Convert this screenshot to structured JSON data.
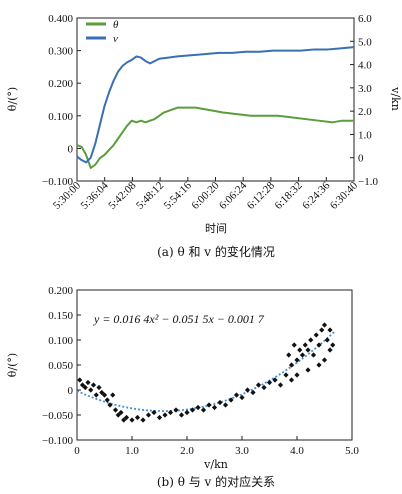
{
  "chart_data": [
    {
      "type": "line",
      "caption": "(a) θ 和 v 的变化情况",
      "xlabel": "时间",
      "ylabel_left": "θ/(°)",
      "ylabel_right": "v/kn",
      "x_ticks": [
        "5:30:00",
        "5:36:04",
        "5:42:08",
        "5:48:12",
        "5:54:16",
        "6:00:20",
        "6:06:24",
        "6:12:28",
        "6:18:32",
        "6:24:36",
        "6:30:40"
      ],
      "x_range_minutes": [
        0,
        60.67
      ],
      "ylim_left": [
        -0.1,
        0.4
      ],
      "ylim_right": [
        -1.0,
        6.0
      ],
      "y_ticks_left": [
        "−0.100",
        "0",
        "0.100",
        "0.200",
        "0.300",
        "0.400"
      ],
      "y_ticks_right": [
        "−1.0",
        "0",
        "1.0",
        "2.0",
        "3.0",
        "4.0",
        "5.0",
        "6.0"
      ],
      "legend": "top-left",
      "series": [
        {
          "name": "θ",
          "axis": "left",
          "color": "#5a9e3c",
          "points": [
            [
              0,
              0.01
            ],
            [
              1,
              0.005
            ],
            [
              2,
              -0.02
            ],
            [
              3,
              -0.06
            ],
            [
              4,
              -0.05
            ],
            [
              5,
              -0.03
            ],
            [
              6,
              -0.02
            ],
            [
              7,
              -0.005
            ],
            [
              8,
              0.01
            ],
            [
              9,
              0.03
            ],
            [
              10,
              0.05
            ],
            [
              11,
              0.07
            ],
            [
              12,
              0.085
            ],
            [
              13,
              0.08
            ],
            [
              14,
              0.085
            ],
            [
              15,
              0.08
            ],
            [
              16,
              0.085
            ],
            [
              17,
              0.09
            ],
            [
              18,
              0.1
            ],
            [
              19,
              0.11
            ],
            [
              20,
              0.115
            ],
            [
              21,
              0.12
            ],
            [
              22,
              0.125
            ],
            [
              24,
              0.125
            ],
            [
              26,
              0.125
            ],
            [
              28,
              0.12
            ],
            [
              30,
              0.115
            ],
            [
              32,
              0.11
            ],
            [
              35,
              0.105
            ],
            [
              38,
              0.1
            ],
            [
              41,
              0.1
            ],
            [
              44,
              0.1
            ],
            [
              47,
              0.095
            ],
            [
              50,
              0.09
            ],
            [
              53,
              0.085
            ],
            [
              56,
              0.08
            ],
            [
              58,
              0.085
            ],
            [
              60.67,
              0.085
            ]
          ]
        },
        {
          "name": "v",
          "axis": "right",
          "color": "#3a6fb5",
          "points": [
            [
              0,
              0.05
            ],
            [
              1,
              -0.1
            ],
            [
              2,
              -0.2
            ],
            [
              3,
              0.0
            ],
            [
              4,
              0.6
            ],
            [
              5,
              1.4
            ],
            [
              6,
              2.2
            ],
            [
              7,
              2.8
            ],
            [
              8,
              3.3
            ],
            [
              9,
              3.7
            ],
            [
              10,
              3.95
            ],
            [
              11,
              4.1
            ],
            [
              12,
              4.2
            ],
            [
              13,
              4.35
            ],
            [
              14,
              4.3
            ],
            [
              15,
              4.15
            ],
            [
              16,
              4.05
            ],
            [
              17,
              4.15
            ],
            [
              18,
              4.25
            ],
            [
              20,
              4.3
            ],
            [
              22,
              4.35
            ],
            [
              25,
              4.4
            ],
            [
              28,
              4.45
            ],
            [
              31,
              4.5
            ],
            [
              34,
              4.5
            ],
            [
              37,
              4.55
            ],
            [
              40,
              4.55
            ],
            [
              43,
              4.6
            ],
            [
              46,
              4.6
            ],
            [
              49,
              4.6
            ],
            [
              52,
              4.65
            ],
            [
              55,
              4.65
            ],
            [
              58,
              4.7
            ],
            [
              60.67,
              4.75
            ]
          ]
        }
      ]
    },
    {
      "type": "scatter",
      "caption": "(b) θ 与 v 的对应关系",
      "xlabel": "v/kn",
      "ylabel": "θ/(°)",
      "xlim": [
        0,
        5.0
      ],
      "ylim": [
        -0.1,
        0.2
      ],
      "x_ticks": [
        "0",
        "1.0",
        "2.0",
        "3.0",
        "4.0",
        "5.0"
      ],
      "y_ticks": [
        "−0.100",
        "−0.050",
        "0",
        "0.050",
        "0.100",
        "0.150",
        "0.200"
      ],
      "equation": "y = 0.016 4x² − 0.051 5x − 0.001 7",
      "fit": {
        "a": 0.0164,
        "b": -0.0515,
        "c": -0.0017,
        "color": "#4a8fd0"
      },
      "point_color": "#111111",
      "points": [
        [
          0.05,
          0.02
        ],
        [
          0.1,
          0.01
        ],
        [
          0.15,
          0.005
        ],
        [
          0.2,
          0.015
        ],
        [
          0.25,
          0.0
        ],
        [
          0.3,
          0.01
        ],
        [
          0.35,
          -0.01
        ],
        [
          0.4,
          0.005
        ],
        [
          0.45,
          -0.005
        ],
        [
          0.5,
          -0.01
        ],
        [
          0.55,
          -0.02
        ],
        [
          0.6,
          -0.03
        ],
        [
          0.65,
          -0.01
        ],
        [
          0.7,
          -0.04
        ],
        [
          0.75,
          -0.05
        ],
        [
          0.8,
          -0.045
        ],
        [
          0.85,
          -0.06
        ],
        [
          0.9,
          -0.055
        ],
        [
          1.0,
          -0.06
        ],
        [
          1.1,
          -0.055
        ],
        [
          1.2,
          -0.06
        ],
        [
          1.3,
          -0.05
        ],
        [
          1.4,
          -0.045
        ],
        [
          1.5,
          -0.055
        ],
        [
          1.6,
          -0.05
        ],
        [
          1.7,
          -0.045
        ],
        [
          1.8,
          -0.04
        ],
        [
          1.9,
          -0.05
        ],
        [
          2.0,
          -0.045
        ],
        [
          2.1,
          -0.04
        ],
        [
          2.2,
          -0.035
        ],
        [
          2.3,
          -0.04
        ],
        [
          2.4,
          -0.03
        ],
        [
          2.5,
          -0.035
        ],
        [
          2.6,
          -0.025
        ],
        [
          2.7,
          -0.03
        ],
        [
          2.8,
          -0.02
        ],
        [
          2.9,
          -0.01
        ],
        [
          3.0,
          -0.015
        ],
        [
          3.1,
          0.0
        ],
        [
          3.2,
          -0.005
        ],
        [
          3.3,
          0.01
        ],
        [
          3.4,
          0.005
        ],
        [
          3.5,
          0.015
        ],
        [
          3.6,
          0.02
        ],
        [
          3.7,
          0.01
        ],
        [
          3.8,
          0.03
        ],
        [
          3.85,
          0.07
        ],
        [
          3.9,
          0.05
        ],
        [
          3.95,
          0.09
        ],
        [
          4.0,
          0.06
        ],
        [
          4.05,
          0.08
        ],
        [
          4.1,
          0.07
        ],
        [
          4.15,
          0.09
        ],
        [
          4.2,
          0.08
        ],
        [
          4.25,
          0.1
        ],
        [
          4.3,
          0.07
        ],
        [
          4.35,
          0.11
        ],
        [
          4.4,
          0.09
        ],
        [
          4.45,
          0.12
        ],
        [
          4.5,
          0.13
        ],
        [
          4.55,
          0.1
        ],
        [
          4.6,
          0.12
        ],
        [
          4.65,
          0.09
        ],
        [
          4.5,
          0.06
        ],
        [
          4.4,
          0.05
        ],
        [
          4.2,
          0.04
        ],
        [
          4.0,
          0.03
        ],
        [
          3.9,
          0.02
        ],
        [
          4.6,
          0.08
        ]
      ]
    }
  ]
}
